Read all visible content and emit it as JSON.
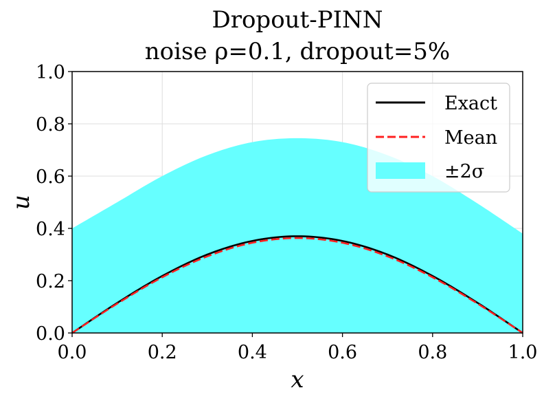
{
  "chart_data": {
    "type": "line",
    "title": "Dropout-PINN",
    "subtitle": "noise ρ=0.1, dropout=5%",
    "xlabel": "x",
    "ylabel": "u",
    "xlim": [
      0.0,
      1.0
    ],
    "ylim": [
      0.0,
      1.0
    ],
    "xticks": [
      "0.0",
      "0.2",
      "0.4",
      "0.6",
      "0.8",
      "1.0"
    ],
    "yticks": [
      "0.0",
      "0.2",
      "0.4",
      "0.6",
      "0.8",
      "1.0"
    ],
    "grid": true,
    "legend_position": "upper-right",
    "x": [
      0.0,
      0.1,
      0.2,
      0.3,
      0.4,
      0.5,
      0.6,
      0.7,
      0.8,
      0.9,
      1.0
    ],
    "series": [
      {
        "name": "Exact",
        "style": "solid",
        "color": "#000000",
        "values": [
          0.0,
          0.115,
          0.218,
          0.3,
          0.352,
          0.37,
          0.352,
          0.3,
          0.218,
          0.115,
          0.0
        ]
      },
      {
        "name": "Mean",
        "style": "dashed",
        "color": "#ff2020",
        "values": [
          0.0,
          0.112,
          0.213,
          0.293,
          0.345,
          0.363,
          0.345,
          0.293,
          0.213,
          0.112,
          0.0
        ]
      }
    ],
    "band": {
      "name": "±2σ",
      "color": "#66ffff",
      "lower": [
        0.0,
        0.0,
        0.0,
        0.0,
        0.0,
        0.0,
        0.0,
        0.0,
        0.0,
        0.0,
        0.0
      ],
      "upper": [
        0.4,
        0.5,
        0.6,
        0.68,
        0.73,
        0.745,
        0.73,
        0.68,
        0.6,
        0.495,
        0.38
      ]
    }
  }
}
